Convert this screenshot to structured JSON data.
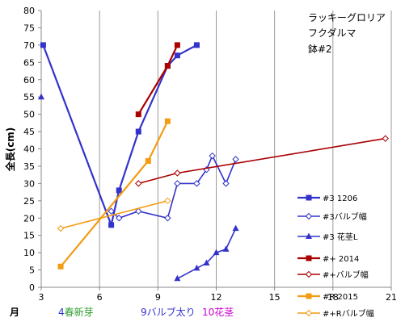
{
  "chart_data": {
    "type": "line",
    "ylabel": "全長(cm)",
    "xlabel": "月",
    "xlim": [
      3,
      21
    ],
    "ylim": [
      0,
      80
    ],
    "x_ticks": [
      3,
      6,
      9,
      12,
      15,
      18,
      21
    ],
    "y_ticks": [
      0,
      5,
      10,
      15,
      20,
      25,
      30,
      35,
      40,
      45,
      50,
      55,
      60,
      65,
      70,
      75,
      80
    ],
    "grid": "vertical",
    "annotation": [
      "ラッキーグロリア",
      "フクダルマ",
      "鉢#2"
    ],
    "legend_position": "right",
    "series": [
      {
        "name": "#3 1206",
        "color": "#3333cc",
        "marker": "square",
        "points": [
          [
            3.1,
            70
          ],
          [
            6.6,
            18
          ],
          [
            7.0,
            28
          ],
          [
            8.0,
            45
          ],
          [
            9.5,
            64
          ],
          [
            10.0,
            67
          ],
          [
            11.0,
            70
          ]
        ]
      },
      {
        "name": "#3バルブ幅",
        "color": "#3333cc",
        "marker": "diamond-open",
        "points": [
          [
            6.6,
            22
          ],
          [
            7.0,
            20
          ],
          [
            8.0,
            22
          ],
          [
            9.5,
            20
          ],
          [
            10.0,
            30
          ],
          [
            11.0,
            30
          ],
          [
            11.5,
            34
          ],
          [
            11.8,
            38
          ],
          [
            12.5,
            30
          ],
          [
            13.0,
            37
          ]
        ]
      },
      {
        "name": "#3 花茎L",
        "color": "#3333cc",
        "marker": "triangle",
        "points_groups": [
          [
            [
              3.0,
              55
            ]
          ],
          [
            [
              10.0,
              2.5
            ],
            [
              11.0,
              5.5
            ],
            [
              11.5,
              7
            ],
            [
              12.0,
              10
            ],
            [
              12.5,
              11
            ],
            [
              13.0,
              17
            ]
          ]
        ]
      },
      {
        "name": "#+ 2014",
        "color": "#aa0000",
        "marker": "square",
        "points": [
          [
            8.0,
            50
          ],
          [
            9.5,
            64
          ],
          [
            10.0,
            70
          ]
        ]
      },
      {
        "name": "#+バルブ幅",
        "color": "#aa0000",
        "marker": "diamond-open",
        "points": [
          [
            8.0,
            30
          ],
          [
            10.0,
            33
          ],
          [
            20.7,
            43
          ]
        ]
      },
      {
        "name": "#R 2015",
        "color": "#f39c12",
        "marker": "square",
        "points": [
          [
            4.0,
            6
          ],
          [
            8.5,
            36.5
          ],
          [
            9.5,
            48
          ]
        ]
      },
      {
        "name": "#+Rバルブ幅",
        "color": "#f39c12",
        "marker": "diamond-open",
        "points": [
          [
            4.0,
            17
          ],
          [
            9.5,
            25
          ]
        ]
      }
    ]
  },
  "footer": {
    "item1_num": "4",
    "item1_text": "春新芽",
    "item2_num": "9",
    "item2_text": "バルブ太り",
    "item3_num": "10",
    "item3_text": "花茎"
  }
}
